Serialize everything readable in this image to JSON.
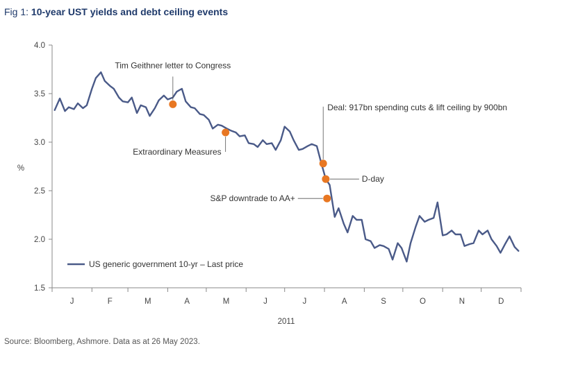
{
  "figure": {
    "prefix": "Fig 1: ",
    "title": "10-year UST yields and debt ceiling events",
    "source": "Source: Bloomberg, Ashmore. Data as at 26 May 2023."
  },
  "colors": {
    "line": "#4a5a88",
    "marker": "#e87722",
    "title": "#1f3a6b"
  },
  "chart_data": {
    "type": "line",
    "title": "10-year UST yields and debt ceiling events",
    "xlabel": "2011",
    "ylabel": "%",
    "ylim": [
      1.5,
      4.0
    ],
    "yticks": [
      "4.0",
      "3.5",
      "3.0",
      "2.5",
      "2.0",
      "1.5"
    ],
    "xticks": [
      "J",
      "F",
      "M",
      "A",
      "M",
      "J",
      "J",
      "A",
      "S",
      "O",
      "N",
      "D"
    ],
    "grid": false,
    "legend_position": "bottom-left",
    "series": [
      {
        "name": "US generic government 10-yr – Last price",
        "x": [
          "2011-01-03",
          "2011-01-07",
          "2011-01-11",
          "2011-01-14",
          "2011-01-18",
          "2011-01-21",
          "2011-01-25",
          "2011-01-28",
          "2011-02-01",
          "2011-02-04",
          "2011-02-08",
          "2011-02-11",
          "2011-02-15",
          "2011-02-18",
          "2011-02-22",
          "2011-02-25",
          "2011-03-01",
          "2011-03-04",
          "2011-03-08",
          "2011-03-11",
          "2011-03-15",
          "2011-03-18",
          "2011-03-22",
          "2011-03-25",
          "2011-03-29",
          "2011-04-01",
          "2011-04-05",
          "2011-04-08",
          "2011-04-12",
          "2011-04-15",
          "2011-04-19",
          "2011-04-22",
          "2011-04-26",
          "2011-04-29",
          "2011-05-03",
          "2011-05-06",
          "2011-05-10",
          "2011-05-13",
          "2011-05-17",
          "2011-05-20",
          "2011-05-24",
          "2011-05-27",
          "2011-05-31",
          "2011-06-03",
          "2011-06-07",
          "2011-06-10",
          "2011-06-14",
          "2011-06-17",
          "2011-06-21",
          "2011-06-24",
          "2011-06-28",
          "2011-07-01",
          "2011-07-05",
          "2011-07-08",
          "2011-07-12",
          "2011-07-15",
          "2011-07-19",
          "2011-07-22",
          "2011-07-26",
          "2011-07-29",
          "2011-08-02",
          "2011-08-05",
          "2011-08-09",
          "2011-08-12",
          "2011-08-16",
          "2011-08-19",
          "2011-08-23",
          "2011-08-26",
          "2011-08-30",
          "2011-09-02",
          "2011-09-06",
          "2011-09-09",
          "2011-09-13",
          "2011-09-16",
          "2011-09-20",
          "2011-09-23",
          "2011-09-27",
          "2011-09-30",
          "2011-10-04",
          "2011-10-07",
          "2011-10-11",
          "2011-10-14",
          "2011-10-18",
          "2011-10-21",
          "2011-10-25",
          "2011-10-28",
          "2011-11-01",
          "2011-11-04",
          "2011-11-08",
          "2011-11-11",
          "2011-11-15",
          "2011-11-18",
          "2011-11-22",
          "2011-11-25",
          "2011-11-29",
          "2011-12-02",
          "2011-12-06",
          "2011-12-09",
          "2011-12-13",
          "2011-12-16",
          "2011-12-20",
          "2011-12-23",
          "2011-12-27",
          "2011-12-30"
        ],
        "values": [
          3.33,
          3.45,
          3.32,
          3.36,
          3.34,
          3.4,
          3.35,
          3.38,
          3.55,
          3.66,
          3.72,
          3.63,
          3.58,
          3.55,
          3.46,
          3.42,
          3.41,
          3.46,
          3.3,
          3.38,
          3.36,
          3.27,
          3.35,
          3.43,
          3.48,
          3.44,
          3.46,
          3.52,
          3.55,
          3.42,
          3.36,
          3.35,
          3.29,
          3.28,
          3.23,
          3.14,
          3.18,
          3.17,
          3.14,
          3.12,
          3.1,
          3.06,
          3.07,
          2.99,
          2.98,
          2.95,
          3.02,
          2.98,
          2.99,
          2.92,
          3.02,
          3.16,
          3.11,
          3.02,
          2.92,
          2.93,
          2.96,
          2.98,
          2.96,
          2.81,
          2.62,
          2.56,
          2.23,
          2.32,
          2.16,
          2.07,
          2.24,
          2.2,
          2.2,
          2.0,
          1.98,
          1.91,
          1.94,
          1.93,
          1.9,
          1.79,
          1.96,
          1.91,
          1.77,
          1.96,
          2.13,
          2.24,
          2.18,
          2.2,
          2.22,
          2.38,
          2.04,
          2.05,
          2.09,
          2.05,
          2.05,
          1.93,
          1.95,
          1.96,
          2.09,
          2.05,
          2.09,
          2.0,
          1.93,
          1.86,
          1.96,
          2.03,
          1.92,
          1.88
        ]
      }
    ],
    "annotations": [
      {
        "label": "Tim Geithner letter to Congress",
        "x": "2011-04-05",
        "y": 3.39
      },
      {
        "label": "Extraordinary Measures",
        "x": "2011-05-16",
        "y": 3.1
      },
      {
        "label": "Deal: 917bn spending cuts & lift ceiling by 900bn",
        "x": "2011-07-31",
        "y": 2.78
      },
      {
        "label": "D-day",
        "x": "2011-08-02",
        "y": 2.62
      },
      {
        "label": "S&P downtrade to AA+",
        "x": "2011-08-03",
        "y": 2.42
      }
    ]
  }
}
